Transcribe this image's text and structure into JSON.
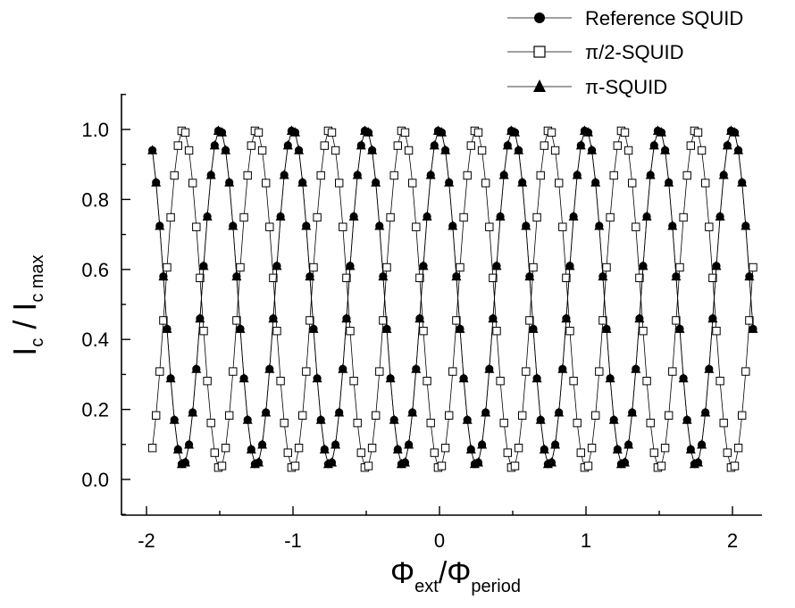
{
  "chart_data": {
    "type": "scatter",
    "xlabel": {
      "main": "Φ",
      "sub1": "ext",
      "sep": "/Φ",
      "sub2": "period"
    },
    "ylabel": {
      "main": "I",
      "sub1": "c",
      "sep": " / I",
      "sub2": "c max"
    },
    "xlim": [
      -2.2,
      2.2
    ],
    "ylim": [
      -0.1,
      1.1
    ],
    "xticks": [
      -2,
      -1,
      0,
      1,
      2
    ],
    "xtick_labels": [
      "-2",
      "-1",
      "0",
      "1",
      "2"
    ],
    "yticks": [
      0.0,
      0.2,
      0.4,
      0.6,
      0.8,
      1.0
    ],
    "ytick_labels": [
      "0.0",
      "0.2",
      "0.4",
      "0.6",
      "0.8",
      "1.0"
    ],
    "grid": false,
    "legend_position": "top-right",
    "x_range_sampled": [
      -1.96,
      2.16
    ],
    "x_step": 0.025,
    "series": [
      {
        "name": "Reference SQUID",
        "marker": "filled-circle",
        "phase": 0.0,
        "min_value": 0.04,
        "max_value": 1.0
      },
      {
        "name": "π/2-SQUID",
        "marker": "open-square",
        "phase": 0.25,
        "min_value": 0.03,
        "max_value": 1.0
      },
      {
        "name": "π-SQUID",
        "marker": "filled-triangle",
        "phase": 0.5,
        "min_value": 0.04,
        "max_value": 1.0
      }
    ]
  }
}
